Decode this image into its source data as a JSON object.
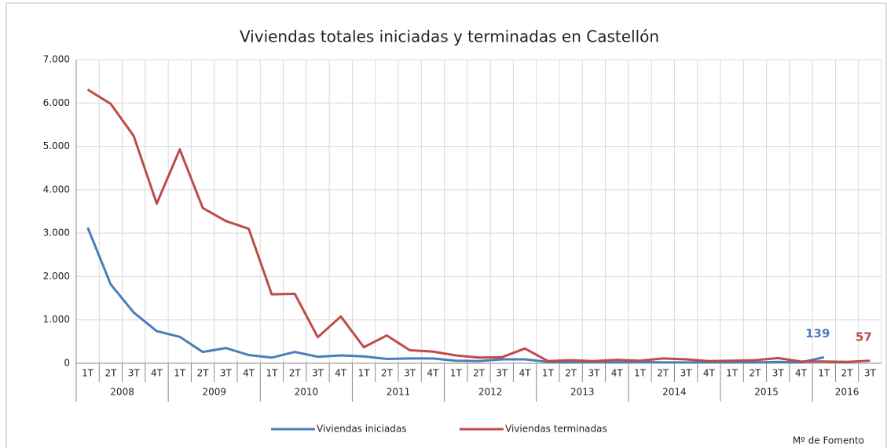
{
  "chart_data": {
    "type": "line",
    "title": "Viviendas totales iniciadas y terminadas en Castellón",
    "groups": [
      {
        "label": "2008",
        "categories": [
          "1T",
          "2T",
          "3T",
          "4T"
        ]
      },
      {
        "label": "2009",
        "categories": [
          "1T",
          "2T",
          "3T",
          "4T"
        ]
      },
      {
        "label": "2010",
        "categories": [
          "1T",
          "2T",
          "3T",
          "4T"
        ]
      },
      {
        "label": "2011",
        "categories": [
          "1T",
          "2T",
          "3T",
          "4T"
        ]
      },
      {
        "label": "2012",
        "categories": [
          "1T",
          "2T",
          "3T",
          "4T"
        ]
      },
      {
        "label": "2013",
        "categories": [
          "1T",
          "2T",
          "3T",
          "4T"
        ]
      },
      {
        "label": "2014",
        "categories": [
          "1T",
          "2T",
          "3T",
          "4T"
        ]
      },
      {
        "label": "2015",
        "categories": [
          "1T",
          "2T",
          "3T",
          "4T"
        ]
      },
      {
        "label": "2016",
        "categories": [
          "1T",
          "2T",
          "3T"
        ]
      }
    ],
    "series": [
      {
        "name": "Viviendas iniciadas",
        "color": "#4a7ebb",
        "values": [
          3130,
          1820,
          1170,
          740,
          610,
          260,
          350,
          190,
          130,
          260,
          150,
          180,
          160,
          100,
          110,
          110,
          60,
          50,
          90,
          90,
          30,
          20,
          30,
          20,
          30,
          20,
          20,
          20,
          20,
          20,
          30,
          20,
          139,
          null,
          null
        ],
        "labeled_index": 32
      },
      {
        "name": "Viviendas terminadas",
        "color": "#be4b48",
        "values": [
          6310,
          5980,
          5240,
          3680,
          4930,
          3580,
          3280,
          3100,
          1590,
          1600,
          600,
          1080,
          370,
          640,
          300,
          270,
          180,
          130,
          140,
          340,
          50,
          70,
          50,
          80,
          60,
          110,
          90,
          50,
          60,
          70,
          120,
          40,
          40,
          30,
          57
        ],
        "labeled_index": 34
      }
    ],
    "ylim": [
      0,
      7000
    ],
    "yticks": [
      0,
      {
        "value": 1000,
        "label": "1.000"
      },
      {
        "value": 2000,
        "label": "2.000"
      },
      {
        "value": 3000,
        "label": "3.000"
      },
      {
        "value": 4000,
        "label": "4.000"
      },
      {
        "value": 5000,
        "label": "5.000"
      },
      {
        "value": 6000,
        "label": "6.000"
      },
      {
        "value": 7000,
        "label": "7.000"
      }
    ],
    "grid": true,
    "legend": "bottom",
    "source": "Mº de Fomento"
  }
}
